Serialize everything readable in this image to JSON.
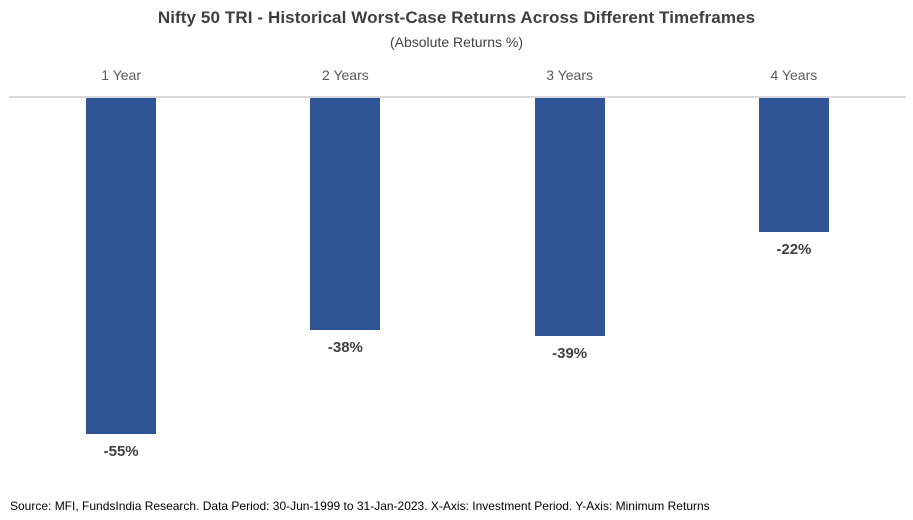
{
  "chart": {
    "title": "Nifty 50 TRI - Historical Worst-Case Returns Across Different Timeframes",
    "subtitle": "(Absolute Returns %)",
    "source_note": "Source: MFI, FundsIndia Research. Data Period: 30-Jun-1999 to 31-Jan-2023. X-Axis: Investment Period. Y-Axis: Minimum Returns"
  },
  "chart_data": {
    "type": "bar",
    "title": "Nifty 50 TRI - Historical Worst-Case Returns Across Different Timeframes",
    "subtitle": "(Absolute Returns %)",
    "categories": [
      "1 Year",
      "2 Years",
      "3 Years",
      "4 Years"
    ],
    "values": [
      -55,
      -38,
      -39,
      -22
    ],
    "value_labels": [
      "-55%",
      "-38%",
      "-39%",
      "-22%"
    ],
    "xlabel": "Investment Period",
    "ylabel": "Minimum Returns",
    "ylim": [
      -60,
      0
    ],
    "baseline": "top",
    "grid": false,
    "legend": false,
    "colors": {
      "bar": "#2f5597",
      "axis_line": "#d9d9d9",
      "title_text": "#3f3f3f",
      "category_text": "#595959",
      "value_text": "#404040"
    }
  }
}
